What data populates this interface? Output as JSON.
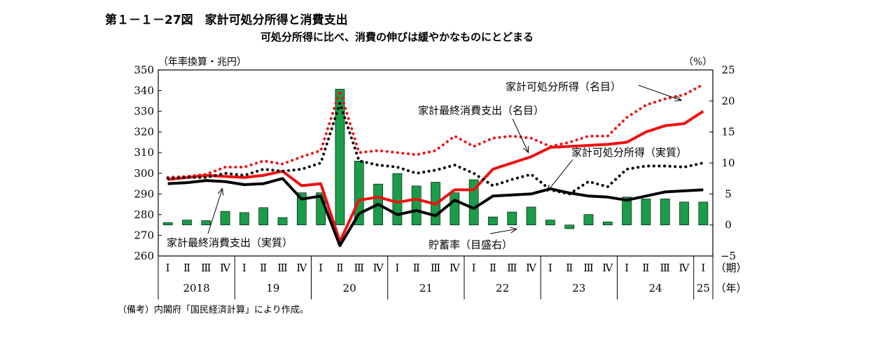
{
  "figure": {
    "title": "第１－１－27図　家計可処分所得と消費支出",
    "subtitle": "可処分所得に比べ、消費の伸びは緩やかなものにとどまる",
    "note": "（備考）内閣府「国民経済計算」により作成。"
  },
  "chart_data": {
    "type": "bar+line",
    "left_axis": {
      "label": "（年率換算・兆円）",
      "min": 260,
      "max": 350,
      "ticks": [
        260,
        270,
        280,
        290,
        300,
        310,
        320,
        330,
        340,
        350
      ]
    },
    "right_axis": {
      "label": "（%）",
      "min": -5,
      "max": 25,
      "ticks": [
        "25",
        "20",
        "15",
        "10",
        "5",
        "0",
        "−5"
      ],
      "tick_values": [
        25,
        20,
        15,
        10,
        5,
        0,
        -5
      ]
    },
    "x_axis": {
      "quarter_labels": [
        "Ⅰ",
        "Ⅱ",
        "Ⅲ",
        "Ⅳ",
        "Ⅰ",
        "Ⅱ",
        "Ⅲ",
        "Ⅳ",
        "Ⅰ",
        "Ⅱ",
        "Ⅲ",
        "Ⅳ",
        "Ⅰ",
        "Ⅱ",
        "Ⅲ",
        "Ⅳ",
        "Ⅰ",
        "Ⅱ",
        "Ⅲ",
        "Ⅳ",
        "Ⅰ",
        "Ⅱ",
        "Ⅲ",
        "Ⅳ",
        "Ⅰ",
        "Ⅱ",
        "Ⅲ",
        "Ⅳ",
        "Ⅰ"
      ],
      "years": [
        {
          "label": "2018",
          "start": 0,
          "count": 4
        },
        {
          "label": "19",
          "start": 4,
          "count": 4
        },
        {
          "label": "20",
          "start": 8,
          "count": 4
        },
        {
          "label": "21",
          "start": 12,
          "count": 4
        },
        {
          "label": "22",
          "start": 16,
          "count": 4
        },
        {
          "label": "23",
          "start": 20,
          "count": 4
        },
        {
          "label": "24",
          "start": 24,
          "count": 4
        },
        {
          "label": "25",
          "start": 28,
          "count": 1
        }
      ],
      "period_unit": "（期）",
      "year_unit": "（年）"
    },
    "series": [
      {
        "name": "貯蓄率（目盛右）",
        "kind": "bar",
        "axis": "right",
        "color": "#1a9c48",
        "values": [
          0.4,
          0.8,
          0.7,
          2.2,
          2.0,
          2.8,
          1.2,
          5.2,
          5.2,
          21.9,
          10.3,
          6.6,
          8.3,
          6.3,
          6.9,
          5.2,
          7.3,
          1.3,
          2.1,
          2.9,
          0.8,
          -0.6,
          1.7,
          0.5,
          4.5,
          4.2,
          4.2,
          3.7,
          3.7
        ]
      },
      {
        "name": "家計可処分所得（名目）",
        "kind": "line",
        "style": "dotted",
        "axis": "left",
        "color": "#ee1111",
        "values": [
          298.0,
          298.5,
          299.5,
          303.0,
          303.0,
          306.0,
          304.5,
          308.0,
          311.0,
          340.0,
          310.0,
          311.0,
          310.0,
          309.0,
          311.0,
          318.0,
          313.0,
          317.0,
          318.0,
          317.0,
          313.0,
          315.0,
          318.0,
          318.0,
          327.0,
          333.0,
          336.0,
          338.0,
          343.0
        ]
      },
      {
        "name": "家計最終消費支出（名目）",
        "kind": "line",
        "style": "solid",
        "axis": "left",
        "color": "#ee1111",
        "values": [
          297.0,
          298.0,
          299.0,
          298.5,
          298.0,
          299.0,
          301.0,
          294.0,
          295.0,
          267.0,
          287.0,
          288.5,
          286.0,
          287.5,
          285.0,
          292.0,
          292.0,
          302.0,
          305.0,
          308.0,
          312.5,
          313.0,
          313.5,
          314.0,
          315.0,
          320.0,
          323.0,
          324.0,
          330.0
        ]
      },
      {
        "name": "家計可処分所得（実質）",
        "kind": "line",
        "style": "dotted",
        "axis": "left",
        "color": "#000000",
        "values": [
          297.5,
          298.0,
          298.0,
          300.0,
          299.0,
          302.0,
          301.0,
          302.0,
          305.0,
          334.0,
          306.0,
          304.0,
          303.0,
          300.0,
          301.5,
          304.0,
          300.0,
          294.0,
          297.0,
          299.5,
          292.0,
          290.0,
          296.0,
          293.5,
          302.0,
          303.5,
          303.5,
          303.0,
          305.0
        ]
      },
      {
        "name": "家計最終消費支出（実質）",
        "kind": "line",
        "style": "solid",
        "axis": "left",
        "color": "#000000",
        "values": [
          295.0,
          295.5,
          296.5,
          296.0,
          294.5,
          295.0,
          297.5,
          287.5,
          289.0,
          265.0,
          280.5,
          285.0,
          280.0,
          282.0,
          279.5,
          287.0,
          283.0,
          289.0,
          289.5,
          290.0,
          292.5,
          290.5,
          289.0,
          288.5,
          287.0,
          289.0,
          291.0,
          291.5,
          292.0
        ]
      }
    ],
    "annotations": [
      {
        "text": "家計可処分所得（名目）",
        "series": 1,
        "arrow_to_index": 27
      },
      {
        "text": "家計最終消費支出（名目）",
        "series": 2,
        "arrow_to_index": 19
      },
      {
        "text": "家計可処分所得（実質）",
        "series": 3,
        "arrow_to_index": 20
      },
      {
        "text": "家計最終消費支出（実質）",
        "series": 4,
        "arrow_to_index": 3
      },
      {
        "text": "貯蓄率（目盛右）",
        "series": 0,
        "arrow_to_index": 20
      }
    ]
  }
}
